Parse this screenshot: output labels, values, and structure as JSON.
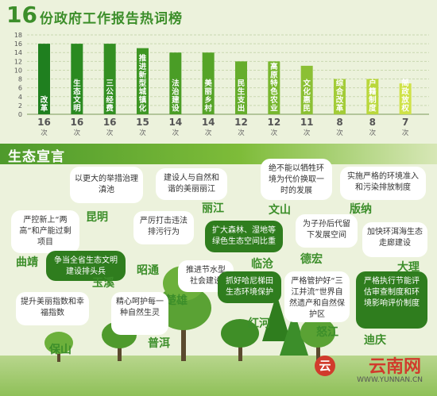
{
  "header": {
    "title_number": "16",
    "title_text": "份政府工作报告热词榜"
  },
  "chart_data": {
    "type": "bar",
    "title": "16份政府工作报告热词榜",
    "categories": [
      "改革",
      "生态文明",
      "三公经费",
      "推进新型城镇化",
      "法治建设",
      "美丽乡村",
      "民生支出",
      "高原特色农业",
      "文化惠民",
      "综合改革",
      "户籍制度",
      "简政放权"
    ],
    "values": [
      16,
      16,
      16,
      15,
      14,
      14,
      12,
      12,
      11,
      8,
      8,
      7
    ],
    "value_labels": [
      "16",
      "16",
      "16",
      "15",
      "14",
      "14",
      "12",
      "12",
      "11",
      "8",
      "8",
      "7"
    ],
    "unit_label": "次",
    "yticks": [
      0,
      2,
      4,
      6,
      8,
      10,
      12,
      14,
      16,
      18
    ],
    "ylim": [
      0,
      18
    ],
    "grid": true,
    "bar_colors": [
      "#1f7f1f",
      "#2a8a20",
      "#338f22",
      "#3e9624",
      "#4a9d26",
      "#56a428",
      "#66ad2c",
      "#78b72f",
      "#8bc034",
      "#a3cc38",
      "#bad83c",
      "#cfe247"
    ]
  },
  "section": {
    "title": "生态宣言"
  },
  "cities": [
    {
      "name": "昆明",
      "text": "以更大的举措治理滇池"
    },
    {
      "name": "丽江",
      "text": "建设人与自然和谐的美丽丽江"
    },
    {
      "name": "文山",
      "text": "绝不能以牺牲环境为代价换取一时的发展"
    },
    {
      "name": "版纳",
      "text": "实施严格的环境准入和污染排放制度"
    },
    {
      "name": "曲靖",
      "text": "严控新上“两高”和产能过剩项目"
    },
    {
      "name": "昭通",
      "text": "严厉打击违法排污行为"
    },
    {
      "name": "临沧",
      "text": "扩大森林、湿地等绿色生态空间比重"
    },
    {
      "name": "德宏",
      "text": "为子孙后代留下发展空间"
    },
    {
      "name": "大理",
      "text": "加快环洱海生态走廊建设"
    },
    {
      "name": "玉溪",
      "text": "争当全省生态文明建设排头兵"
    },
    {
      "name": "楚雄",
      "text": "推进节水型社会建设"
    },
    {
      "name": "红河",
      "text": "抓好哈尼梯田生态环境保护"
    },
    {
      "name": "怒江",
      "text": "严格管护好“三江并流”世界自然遗产和自然保护区"
    },
    {
      "name": "迪庆",
      "text": "严格执行节能评估审查制度和环境影响评价制度"
    },
    {
      "name": "保山",
      "text": "提升美丽指数和幸福指数"
    },
    {
      "name": "普洱",
      "text": "精心呵护每一种自然生灵"
    }
  ],
  "branding": {
    "logo_text": "云南网",
    "logo_mark": "云",
    "url": "WWW.YUNNAN.CN"
  }
}
